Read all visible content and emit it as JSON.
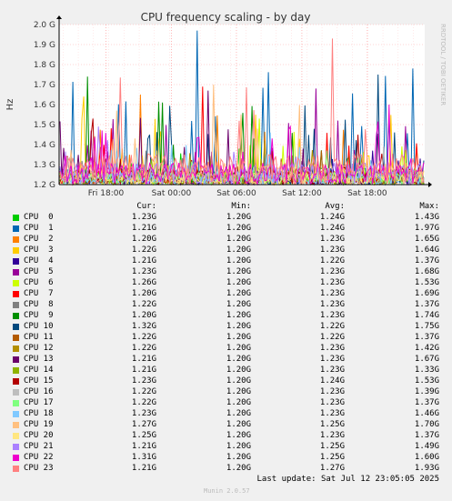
{
  "chart_data": {
    "type": "line",
    "title": "CPU frequency scaling - by day",
    "ylabel": "Hz",
    "watermark": "RRDTOOL / TOBI OETIKER",
    "ylim": [
      1.2,
      2.0
    ],
    "yticks": [
      "1.2 G",
      "1.3 G",
      "1.4 G",
      "1.5 G",
      "1.6 G",
      "1.7 G",
      "1.8 G",
      "1.9 G",
      "2.0 G"
    ],
    "ytick_values": [
      1.2,
      1.3,
      1.4,
      1.5,
      1.6,
      1.7,
      1.8,
      1.9,
      2.0
    ],
    "xticks": [
      "Fri 18:00",
      "Sat 00:00",
      "Sat 06:00",
      "Sat 12:00",
      "Sat 18:00"
    ],
    "grid": true,
    "series": [
      {
        "name": "CPU  0",
        "color": "#00cc00",
        "cur": "1.23G",
        "min": "1.20G",
        "avg": "1.24G",
        "max": "1.43G"
      },
      {
        "name": "CPU  1",
        "color": "#0066b3",
        "cur": "1.21G",
        "min": "1.20G",
        "avg": "1.24G",
        "max": "1.97G"
      },
      {
        "name": "CPU  2",
        "color": "#ff8000",
        "cur": "1.20G",
        "min": "1.20G",
        "avg": "1.23G",
        "max": "1.65G"
      },
      {
        "name": "CPU  3",
        "color": "#ffcc00",
        "cur": "1.22G",
        "min": "1.20G",
        "avg": "1.23G",
        "max": "1.64G"
      },
      {
        "name": "CPU  4",
        "color": "#330099",
        "cur": "1.21G",
        "min": "1.20G",
        "avg": "1.22G",
        "max": "1.37G"
      },
      {
        "name": "CPU  5",
        "color": "#990099",
        "cur": "1.23G",
        "min": "1.20G",
        "avg": "1.23G",
        "max": "1.68G"
      },
      {
        "name": "CPU  6",
        "color": "#ccff00",
        "cur": "1.26G",
        "min": "1.20G",
        "avg": "1.23G",
        "max": "1.53G"
      },
      {
        "name": "CPU  7",
        "color": "#ff0000",
        "cur": "1.20G",
        "min": "1.20G",
        "avg": "1.23G",
        "max": "1.69G"
      },
      {
        "name": "CPU  8",
        "color": "#808080",
        "cur": "1.22G",
        "min": "1.20G",
        "avg": "1.23G",
        "max": "1.37G"
      },
      {
        "name": "CPU  9",
        "color": "#008f00",
        "cur": "1.20G",
        "min": "1.20G",
        "avg": "1.23G",
        "max": "1.74G"
      },
      {
        "name": "CPU 10",
        "color": "#00487d",
        "cur": "1.32G",
        "min": "1.20G",
        "avg": "1.22G",
        "max": "1.75G"
      },
      {
        "name": "CPU 11",
        "color": "#b35a00",
        "cur": "1.22G",
        "min": "1.20G",
        "avg": "1.22G",
        "max": "1.37G"
      },
      {
        "name": "CPU 12",
        "color": "#b38f00",
        "cur": "1.22G",
        "min": "1.20G",
        "avg": "1.23G",
        "max": "1.42G"
      },
      {
        "name": "CPU 13",
        "color": "#6b006b",
        "cur": "1.21G",
        "min": "1.20G",
        "avg": "1.23G",
        "max": "1.67G"
      },
      {
        "name": "CPU 14",
        "color": "#8fb300",
        "cur": "1.21G",
        "min": "1.20G",
        "avg": "1.23G",
        "max": "1.33G"
      },
      {
        "name": "CPU 15",
        "color": "#b30000",
        "cur": "1.23G",
        "min": "1.20G",
        "avg": "1.24G",
        "max": "1.53G"
      },
      {
        "name": "CPU 16",
        "color": "#bebebe",
        "cur": "1.22G",
        "min": "1.20G",
        "avg": "1.23G",
        "max": "1.39G"
      },
      {
        "name": "CPU 17",
        "color": "#80ff80",
        "cur": "1.22G",
        "min": "1.20G",
        "avg": "1.23G",
        "max": "1.37G"
      },
      {
        "name": "CPU 18",
        "color": "#80c9ff",
        "cur": "1.23G",
        "min": "1.20G",
        "avg": "1.23G",
        "max": "1.46G"
      },
      {
        "name": "CPU 19",
        "color": "#ffc080",
        "cur": "1.27G",
        "min": "1.20G",
        "avg": "1.25G",
        "max": "1.70G"
      },
      {
        "name": "CPU 20",
        "color": "#ffe680",
        "cur": "1.25G",
        "min": "1.20G",
        "avg": "1.23G",
        "max": "1.37G"
      },
      {
        "name": "CPU 21",
        "color": "#aa80ff",
        "cur": "1.21G",
        "min": "1.20G",
        "avg": "1.25G",
        "max": "1.49G"
      },
      {
        "name": "CPU 22",
        "color": "#ee00cc",
        "cur": "1.31G",
        "min": "1.20G",
        "avg": "1.25G",
        "max": "1.60G"
      },
      {
        "name": "CPU 23",
        "color": "#ff8080",
        "cur": "1.21G",
        "min": "1.20G",
        "avg": "1.27G",
        "max": "1.93G"
      }
    ]
  },
  "legend_header": {
    "cur": "Cur:",
    "min": "Min:",
    "avg": "Avg:",
    "max": "Max:"
  },
  "footer": {
    "last_update": "Last update: Sat Jul 12 23:05:05 2025",
    "munin_version": "Munin 2.0.57"
  }
}
